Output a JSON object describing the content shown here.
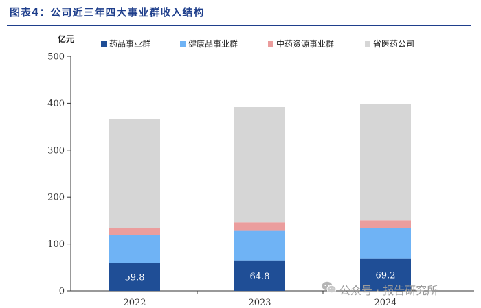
{
  "figure": {
    "title": "图表4：公司近三年四大事业群收入结构"
  },
  "watermark": {
    "text": "公众号 · 报告研究所",
    "icon": "wechat-icon"
  },
  "chart_data": {
    "type": "bar",
    "stacked": true,
    "unit_label": "亿元",
    "categories": [
      "2022",
      "2023",
      "2024"
    ],
    "ylim": [
      0,
      500
    ],
    "yticks": [
      0,
      100,
      200,
      300,
      400,
      500
    ],
    "grid": false,
    "legend_position": "top",
    "series": [
      {
        "name": "药品事业群",
        "color": "#1f4e96",
        "values": [
          59.8,
          64.8,
          69.2
        ],
        "show_labels": true
      },
      {
        "name": "健康品事业群",
        "color": "#6fb3f5",
        "values": [
          60,
          63,
          64
        ],
        "show_labels": false
      },
      {
        "name": "中药资源事业群",
        "color": "#eb9d9d",
        "values": [
          14,
          18,
          17
        ],
        "show_labels": false
      },
      {
        "name": "省医药公司",
        "color": "#d6d6d6",
        "values": [
          233,
          246,
          248
        ],
        "show_labels": false
      }
    ]
  }
}
